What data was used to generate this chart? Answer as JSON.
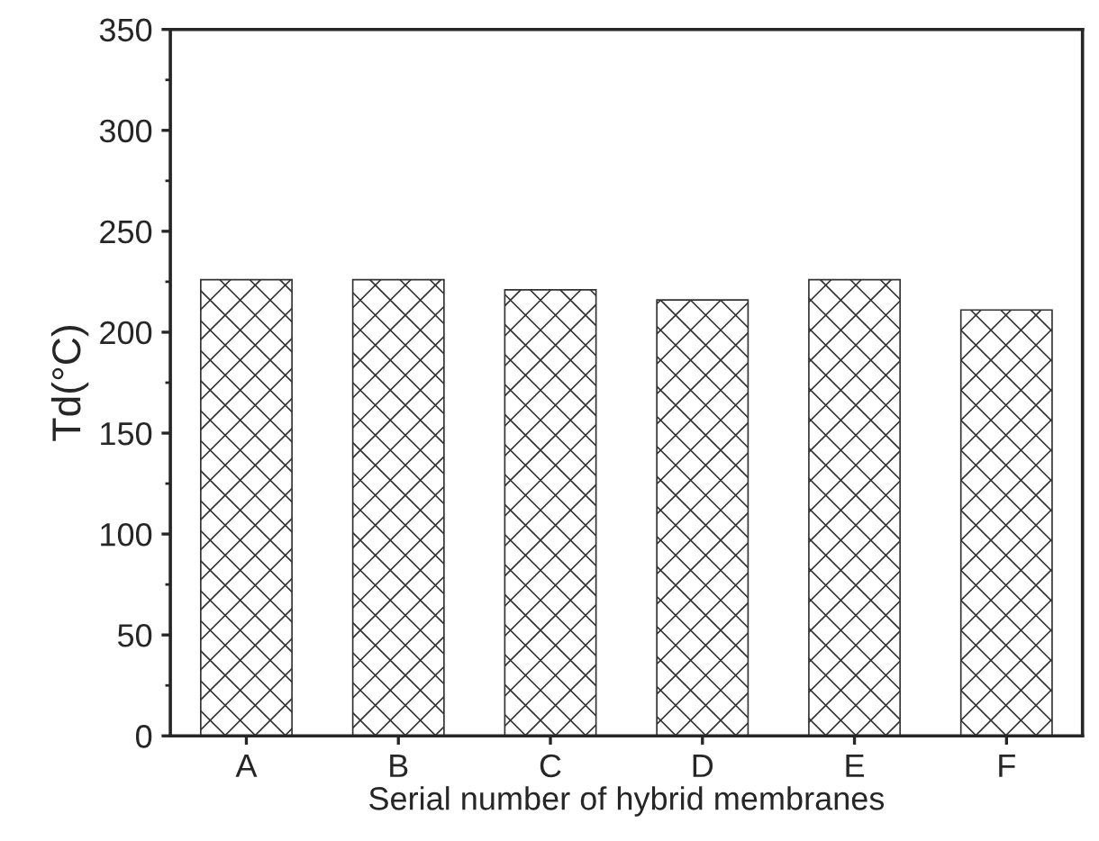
{
  "chart_data": {
    "type": "bar",
    "xlabel": "Serial number of hybrid membranes",
    "ylabel": "Td(°C)",
    "categories": [
      "A",
      "B",
      "C",
      "D",
      "E",
      "F"
    ],
    "values": [
      226,
      226,
      221,
      216,
      226,
      211
    ],
    "color": "#333333",
    "ylim": [
      0,
      350
    ],
    "yticks": [
      0,
      50,
      100,
      150,
      200,
      250,
      300,
      350
    ],
    "grid": false
  }
}
